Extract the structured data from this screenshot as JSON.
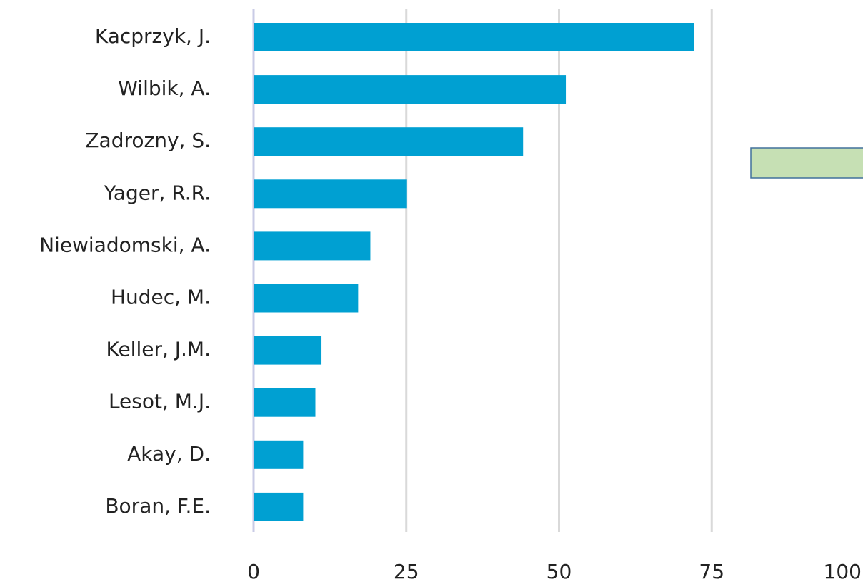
{
  "chart_data": {
    "type": "bar",
    "orientation": "horizontal",
    "categories": [
      "Kacprzyk, J.",
      "Wilbik, A.",
      "Zadrozny, S.",
      "Yager, R.R.",
      "Niewiadomski, A.",
      "Hudec, M.",
      "Keller, J.M.",
      "Lesot, M.J.",
      "Akay, D.",
      "Boran, F.E."
    ],
    "values": [
      72,
      51,
      44,
      25,
      19,
      17,
      11,
      10,
      8,
      8
    ],
    "color": "#00a0d2",
    "xlim": [
      0,
      100
    ],
    "xticks": [
      0,
      25,
      50,
      75,
      100
    ],
    "grid": true
  }
}
